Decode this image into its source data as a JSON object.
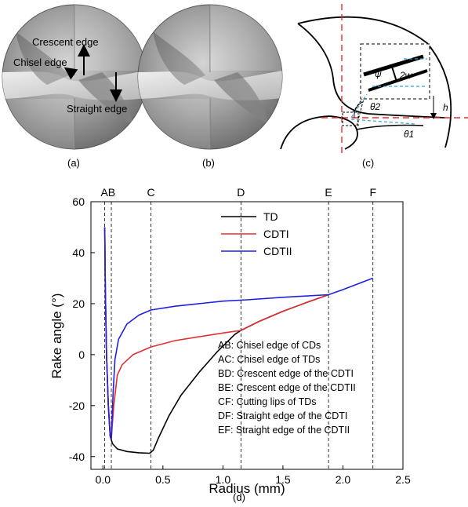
{
  "panels": {
    "a": {
      "label": "(a)",
      "callouts": {
        "crescent": "Crescent edge",
        "chisel": "Chisel edge",
        "straight": "Straight edge"
      }
    },
    "b": {
      "label": "(b)"
    },
    "c": {
      "label": "(c)",
      "symbols": {
        "psi": "ψ",
        "two_w": "2w",
        "theta2": "θ2",
        "theta1": "θ1",
        "h": "h"
      }
    },
    "d": {
      "label": "(d)"
    }
  },
  "chart_data": {
    "type": "line",
    "xlabel": "Radius (mm)",
    "ylabel": "Rake angle (°)",
    "xlim": [
      -0.1,
      2.5
    ],
    "ylim": [
      -45,
      60
    ],
    "xticks": [
      0.0,
      0.5,
      1.0,
      1.5,
      2.0,
      2.5
    ],
    "xtick_labels": [
      "0.0",
      "0.5",
      "1.0",
      "1.5",
      "2.0",
      "2.5"
    ],
    "yticks": [
      -40,
      -20,
      0,
      20,
      40,
      60
    ],
    "ytick_labels": [
      "-40",
      "-20",
      "0",
      "20",
      "40",
      "60"
    ],
    "grid": false,
    "legend_position": "top-right",
    "reference_lines": [
      {
        "label": "A",
        "x": 0.015
      },
      {
        "label": "B",
        "x": 0.07
      },
      {
        "label": "C",
        "x": 0.4
      },
      {
        "label": "D",
        "x": 1.15
      },
      {
        "label": "E",
        "x": 1.88
      },
      {
        "label": "F",
        "x": 2.25
      }
    ],
    "top_label_text": "AB",
    "series": [
      {
        "name": "TD",
        "color": "#000000",
        "points": [
          [
            0.015,
            50
          ],
          [
            0.02,
            25
          ],
          [
            0.03,
            0
          ],
          [
            0.045,
            -20
          ],
          [
            0.06,
            -32
          ],
          [
            0.08,
            -35
          ],
          [
            0.12,
            -37
          ],
          [
            0.2,
            -38
          ],
          [
            0.3,
            -38.5
          ],
          [
            0.39,
            -38.7
          ],
          [
            0.42,
            -37.5
          ],
          [
            0.46,
            -33
          ],
          [
            0.55,
            -24
          ],
          [
            0.65,
            -16
          ],
          [
            0.8,
            -7
          ],
          [
            0.95,
            1
          ],
          [
            1.1,
            8
          ],
          [
            1.15,
            9.5
          ],
          [
            1.3,
            13
          ],
          [
            1.5,
            17
          ],
          [
            1.7,
            20.5
          ],
          [
            1.88,
            23.5
          ]
        ]
      },
      {
        "name": "CDTI",
        "color": "#e03030",
        "points": [
          [
            0.015,
            50
          ],
          [
            0.02,
            25
          ],
          [
            0.03,
            0
          ],
          [
            0.045,
            -20
          ],
          [
            0.06,
            -31
          ],
          [
            0.07,
            -33
          ],
          [
            0.09,
            -20
          ],
          [
            0.12,
            -8
          ],
          [
            0.16,
            -4
          ],
          [
            0.25,
            0
          ],
          [
            0.4,
            3
          ],
          [
            0.6,
            5.5
          ],
          [
            0.8,
            7
          ],
          [
            1.0,
            8.5
          ],
          [
            1.15,
            9.5
          ],
          [
            1.3,
            13
          ],
          [
            1.5,
            17
          ],
          [
            1.7,
            20.5
          ],
          [
            1.88,
            23.5
          ]
        ]
      },
      {
        "name": "CDTII",
        "color": "#2020e0",
        "points": [
          [
            0.015,
            50
          ],
          [
            0.02,
            25
          ],
          [
            0.03,
            0
          ],
          [
            0.045,
            -20
          ],
          [
            0.06,
            -31
          ],
          [
            0.07,
            -33
          ],
          [
            0.085,
            -15
          ],
          [
            0.1,
            -2
          ],
          [
            0.13,
            6
          ],
          [
            0.2,
            12
          ],
          [
            0.3,
            15.5
          ],
          [
            0.4,
            17.5
          ],
          [
            0.6,
            19
          ],
          [
            0.8,
            20
          ],
          [
            1.0,
            21
          ],
          [
            1.2,
            21.5
          ],
          [
            1.5,
            22.5
          ],
          [
            1.88,
            23.5
          ],
          [
            2.0,
            25.5
          ],
          [
            2.25,
            30
          ]
        ]
      }
    ],
    "annotations": [
      "AB: Chisel edge of CDs",
      "AC: Chisel edge of TDs",
      "BD: Crescent edge of the CDTI",
      "BE: Crescent edge of the CDTII",
      "CF: Cutting lips of TDs",
      "DF: Straight edge of the CDTI",
      "EF: Straight edge of the CDTII"
    ]
  }
}
